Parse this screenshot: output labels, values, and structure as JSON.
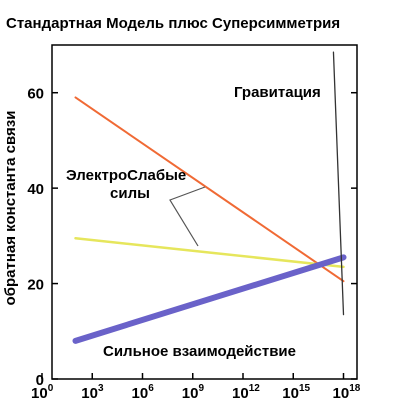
{
  "chart_data": {
    "type": "line",
    "title": "Стандартная Модель плюс Суперсимметрия",
    "xlabel": "",
    "ylabel": "обратная константа связи",
    "x_scale": "log10",
    "xlim_exponent": [
      0,
      20
    ],
    "ylim": [
      0,
      70
    ],
    "y_ticks": [
      0,
      20,
      40,
      60
    ],
    "x_ticks": [
      {
        "base": "10",
        "exp": "0",
        "value_exp": 0
      },
      {
        "base": "10",
        "exp": "3",
        "value_exp": 3
      },
      {
        "base": "10",
        "exp": "6",
        "value_exp": 6
      },
      {
        "base": "10",
        "exp": "9",
        "value_exp": 9
      },
      {
        "base": "10",
        "exp": "12",
        "value_exp": 12
      },
      {
        "base": "10",
        "exp": "15",
        "value_exp": 15
      },
      {
        "base": "10",
        "exp": "18",
        "value_exp": 18
      }
    ],
    "series": [
      {
        "color": "#f06a35",
        "x_exp": [
          2,
          18
        ],
        "y": [
          59,
          20.5
        ]
      },
      {
        "color": "#e6e65c",
        "x_exp": [
          2,
          18
        ],
        "y": [
          29.5,
          23.5
        ]
      },
      {
        "color": "#6a62c9",
        "x_exp": [
          2,
          18
        ],
        "y": [
          8,
          25.5
        ]
      },
      {
        "color": "#333333",
        "x_exp": [
          17.4,
          18.0
        ],
        "y": [
          68.5,
          13.5
        ]
      }
    ],
    "annotations": {
      "gravity": "Гравитация",
      "electroweak_line1": "ЭлектроСлабые",
      "electroweak_line2": "силы",
      "strong": "Сильное взаимодействие"
    }
  }
}
